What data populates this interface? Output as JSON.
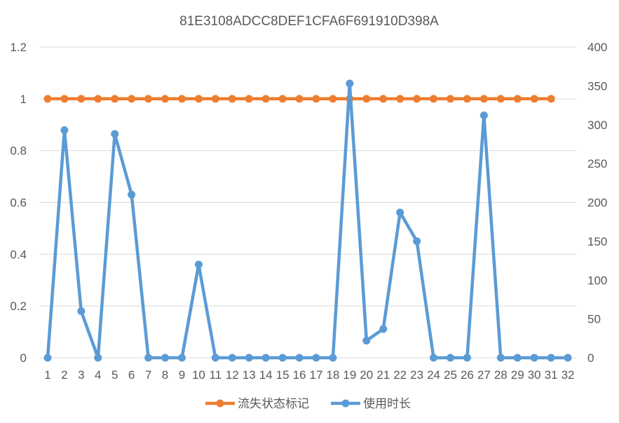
{
  "chart_data": {
    "type": "line",
    "title": "81E3108ADCC8DEF1CFA6F691910D398A",
    "x": [
      1,
      2,
      3,
      4,
      5,
      6,
      7,
      8,
      9,
      10,
      11,
      12,
      13,
      14,
      15,
      16,
      17,
      18,
      19,
      20,
      21,
      22,
      23,
      24,
      25,
      26,
      27,
      28,
      29,
      30,
      31,
      32
    ],
    "y_left": {
      "min": 0,
      "max": 1.2,
      "ticks": [
        "0",
        "0.2",
        "0.4",
        "0.6",
        "0.8",
        "1",
        "1.2"
      ]
    },
    "y_right": {
      "min": 0,
      "max": 400,
      "ticks": [
        "0",
        "50",
        "100",
        "150",
        "200",
        "250",
        "300",
        "350",
        "400"
      ]
    },
    "grid": true,
    "legend_position": "bottom",
    "series": [
      {
        "name": "流失状态标记",
        "axis": "left",
        "color": "#ED7D31",
        "values": [
          1,
          1,
          1,
          1,
          1,
          1,
          1,
          1,
          1,
          1,
          1,
          1,
          1,
          1,
          1,
          1,
          1,
          1,
          1,
          1,
          1,
          1,
          1,
          1,
          1,
          1,
          1,
          1,
          1,
          1,
          1,
          null
        ]
      },
      {
        "name": "使用时长",
        "axis": "right",
        "color": "#5B9BD5",
        "values": [
          0,
          293,
          60,
          0,
          288,
          210,
          0,
          0,
          0,
          120,
          0,
          0,
          0,
          0,
          0,
          0,
          0,
          0,
          353,
          22,
          37,
          187,
          150,
          0,
          0,
          0,
          312,
          0,
          0,
          0,
          0,
          0
        ]
      }
    ]
  }
}
